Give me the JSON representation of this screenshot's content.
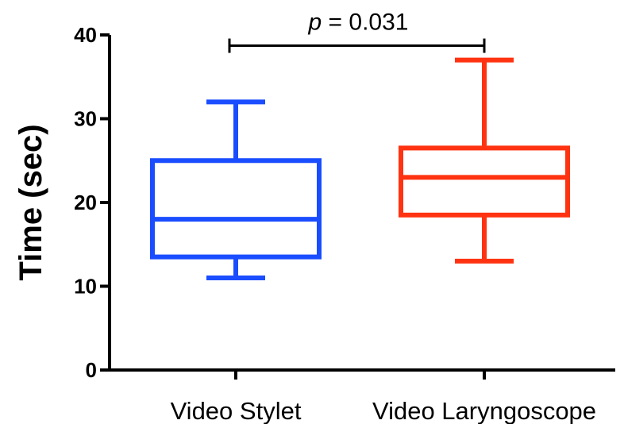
{
  "chart_data": {
    "type": "box",
    "title": "",
    "xlabel": "",
    "ylabel": "Time (sec)",
    "ylim": [
      0,
      40
    ],
    "yticks": [
      0,
      10,
      20,
      30,
      40
    ],
    "categories": [
      "Video Stylet",
      "Video Laryngoscope"
    ],
    "boxes": [
      {
        "category": "Video Stylet",
        "min": 11,
        "q1": 13.5,
        "median": 18,
        "q3": 25,
        "max": 32,
        "color": "#1a4dff"
      },
      {
        "category": "Video Laryngoscope",
        "min": 13,
        "q1": 18.5,
        "median": 23,
        "q3": 26.5,
        "max": 37,
        "color": "#ff3311"
      }
    ],
    "annotation": {
      "p_symbol": "p",
      "text": " = 0.031",
      "between": [
        "Video Stylet",
        "Video Laryngoscope"
      ],
      "y": 39
    },
    "grid": false,
    "legend": "none"
  }
}
